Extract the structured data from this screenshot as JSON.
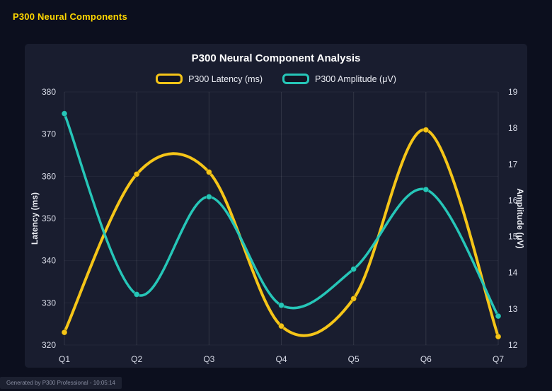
{
  "page": {
    "header_title": "P300 Neural Components",
    "header_color": "#ffd700",
    "footer_text": "Generated by P300 Professional - 10:05:14"
  },
  "chart_data": {
    "type": "line",
    "title": "P300 Neural Component Analysis",
    "categories": [
      "Q1",
      "Q2",
      "Q3",
      "Q4",
      "Q5",
      "Q6",
      "Q7"
    ],
    "series": [
      {
        "name": "P300 Latency (ms)",
        "axis": "left",
        "color": "#f5c518",
        "values": [
          323,
          360.5,
          361,
          324.5,
          331,
          371,
          322
        ]
      },
      {
        "name": "P300 Amplitude (μV)",
        "axis": "right",
        "color": "#26c6b8",
        "values": [
          18.4,
          13.4,
          16.1,
          13.1,
          14.1,
          16.3,
          12.8
        ]
      }
    ],
    "left_axis": {
      "label": "Latency (ms)",
      "min": 320,
      "max": 380,
      "step": 10
    },
    "right_axis": {
      "label": "Amplitude (μV)",
      "min": 12,
      "max": 19,
      "step": 1
    },
    "grid": true,
    "legend_position": "top",
    "smooth": true
  }
}
